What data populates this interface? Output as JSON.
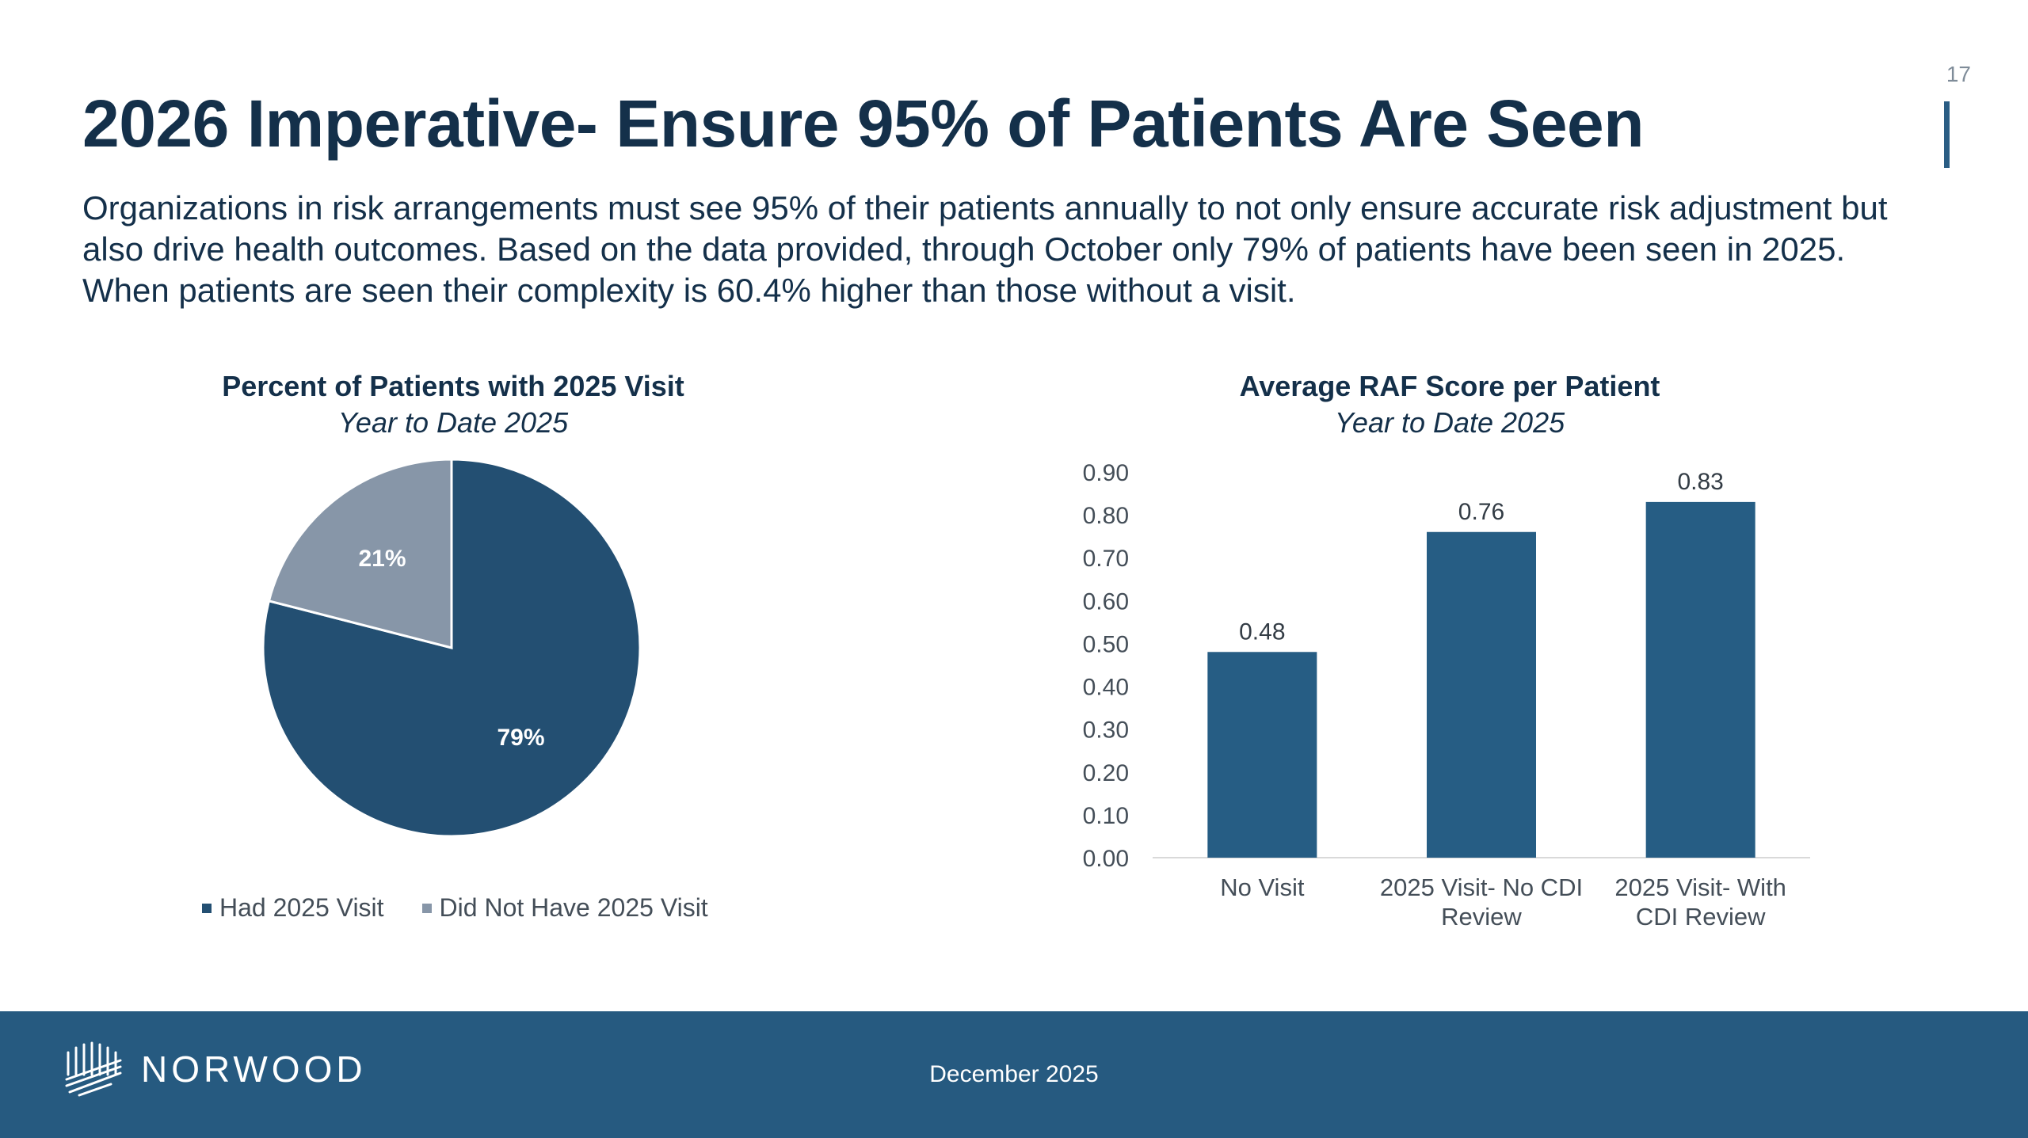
{
  "slide": {
    "page_number": "17",
    "title": "2026 Imperative- Ensure 95% of Patients Are Seen",
    "intro": "Organizations in risk arrangements must see 95% of their patients annually to not only ensure accurate risk adjustment but also drive health outcomes. Based on the data provided, through October only 79% of patients have been seen in 2025. When patients are seen their complexity is 60.4% higher than those without a visit."
  },
  "footer": {
    "logo_text": "NORWOOD",
    "date": "December 2025"
  },
  "colors": {
    "navy": "#14304a",
    "bar": "#265d84",
    "pie_dark": "#234f72",
    "pie_light": "#8796a8",
    "footer": "#265a80"
  },
  "chart_data": [
    {
      "type": "pie",
      "title": "Percent of Patients with 2025 Visit",
      "subtitle": "Year to Date 2025",
      "categories": [
        "Had 2025 Visit",
        "Did Not Have 2025 Visit"
      ],
      "values": [
        79,
        21
      ],
      "labels": [
        "79%",
        "21%"
      ],
      "legend_position": "bottom"
    },
    {
      "type": "bar",
      "title": "Average RAF Score per Patient",
      "subtitle": "Year to Date 2025",
      "categories": [
        "No Visit",
        "2025 Visit- No CDI Review",
        "2025 Visit- With CDI Review"
      ],
      "category_lines": [
        [
          "No Visit"
        ],
        [
          "2025 Visit- No CDI",
          "Review"
        ],
        [
          "2025 Visit- With",
          "CDI Review"
        ]
      ],
      "values": [
        0.48,
        0.76,
        0.83
      ],
      "value_labels": [
        "0.48",
        "0.76",
        "0.83"
      ],
      "ylim": [
        0,
        0.9
      ],
      "yticks": [
        "0.00",
        "0.10",
        "0.20",
        "0.30",
        "0.40",
        "0.50",
        "0.60",
        "0.70",
        "0.80",
        "0.90"
      ],
      "grid": false
    }
  ]
}
